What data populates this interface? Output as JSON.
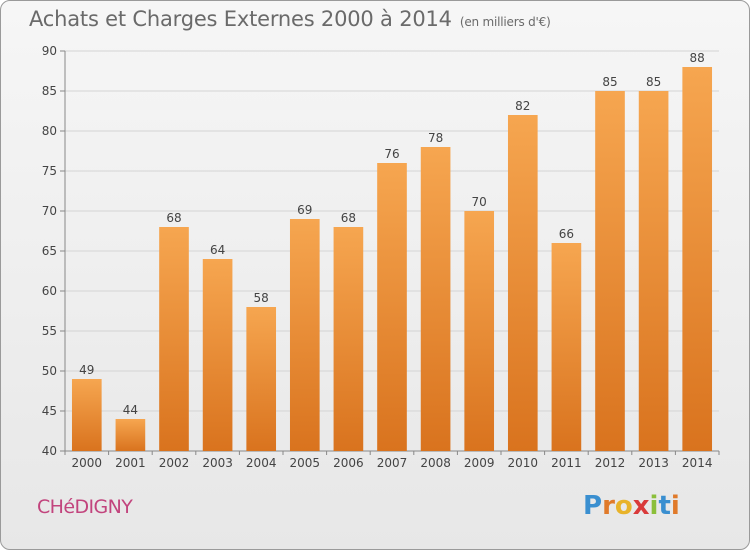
{
  "title": "Achats et Charges Externes 2000 à 2014",
  "subtitle": "(en milliers d'€)",
  "commune": "CHéDIGNY",
  "logo": {
    "letters": [
      "P",
      "r",
      "o",
      "x",
      "i",
      "t",
      "i"
    ],
    "colors": [
      "#3a8fd0",
      "#e07a2a",
      "#e8b32a",
      "#d93a3a",
      "#8bbf3a",
      "#3a8fd0",
      "#e07a2a"
    ]
  },
  "colors": {
    "bar_top": "#f6a650",
    "bar_bottom": "#d9731e",
    "grid": "#d4d4d4"
  },
  "chart_data": {
    "type": "bar",
    "title": "Achats et Charges Externes 2000 à 2014",
    "subtitle": "(en milliers d'€)",
    "categories": [
      "2000",
      "2001",
      "2002",
      "2003",
      "2004",
      "2005",
      "2006",
      "2007",
      "2008",
      "2009",
      "2010",
      "2011",
      "2012",
      "2013",
      "2014"
    ],
    "values": [
      49,
      44,
      68,
      64,
      58,
      69,
      68,
      76,
      78,
      70,
      82,
      66,
      85,
      85,
      88
    ],
    "ylim": [
      40,
      90
    ],
    "yticks": [
      40,
      45,
      50,
      55,
      60,
      65,
      70,
      75,
      80,
      85,
      90
    ],
    "grid": true,
    "xlabel": "",
    "ylabel": ""
  }
}
